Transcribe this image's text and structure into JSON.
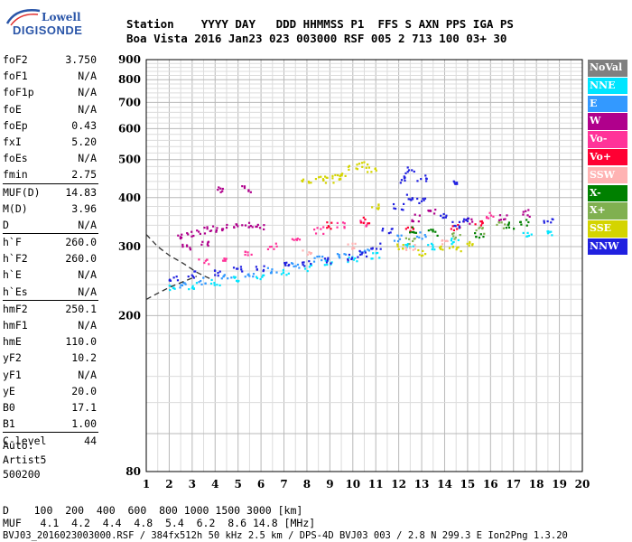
{
  "logo": {
    "line1": "Lowell",
    "line2": "DIGISONDE"
  },
  "header": {
    "line1": "Station    YYYY DAY   DDD HHMMSS P1  FFS S AXN PPS IGA PS",
    "line2": "Boa Vista 2016 Jan23 023 003000 RSF 005 2 713 100 03+ 30"
  },
  "params": [
    {
      "group": [
        {
          "name": "foF2",
          "value": "3.750"
        },
        {
          "name": "foF1",
          "value": "N/A"
        },
        {
          "name": "foF1p",
          "value": "N/A"
        },
        {
          "name": "foE",
          "value": "N/A"
        },
        {
          "name": "foEp",
          "value": "0.43"
        },
        {
          "name": "fxI",
          "value": "5.20"
        },
        {
          "name": "foEs",
          "value": "N/A"
        },
        {
          "name": "fmin",
          "value": "2.75"
        }
      ]
    },
    {
      "group": [
        {
          "name": "MUF(D)",
          "value": "14.83"
        },
        {
          "name": "M(D)",
          "value": "3.96"
        },
        {
          "name": "D",
          "value": "N/A"
        }
      ]
    },
    {
      "group": [
        {
          "name": "h`F",
          "value": "260.0"
        },
        {
          "name": "h`F2",
          "value": "260.0"
        },
        {
          "name": "h`E",
          "value": "N/A"
        },
        {
          "name": "h`Es",
          "value": "N/A"
        }
      ]
    },
    {
      "group": [
        {
          "name": "hmF2",
          "value": "250.1"
        },
        {
          "name": "hmF1",
          "value": "N/A"
        },
        {
          "name": "hmE",
          "value": "110.0"
        },
        {
          "name": "yF2",
          "value": "10.2"
        },
        {
          "name": "yF1",
          "value": "N/A"
        },
        {
          "name": "yE",
          "value": "20.0"
        },
        {
          "name": "B0",
          "value": "17.1"
        },
        {
          "name": "B1",
          "value": "1.00"
        }
      ]
    },
    {
      "group": [
        {
          "name": "C-level",
          "value": "44"
        }
      ]
    }
  ],
  "auto": {
    "line1": "Auto:",
    "line2": "Artist5",
    "line3": "500200"
  },
  "footer": {
    "line1": "D    100  200  400  600  800 1000 1500 3000 [km]",
    "line2": "MUF   4.1  4.2  4.4  4.8  5.4  6.2  8.6 14.8 [MHz]",
    "line3": "BVJ03_2016023003000.RSF / 384fx512h 50 kHz 2.5 km / DPS-4D BVJ03 003 / 2.8 N 299.3 E Ion2Png 1.3.20"
  },
  "legend": [
    {
      "label": "NoVal",
      "bg": "#808080",
      "fg": "#ffffff"
    },
    {
      "label": "NNE",
      "bg": "#00e5ff",
      "fg": "#ffffff"
    },
    {
      "label": "E",
      "bg": "#3399ff",
      "fg": "#ffffff"
    },
    {
      "label": "W",
      "bg": "#b0008c",
      "fg": "#ffffff"
    },
    {
      "label": "Vo-",
      "bg": "#ff3399",
      "fg": "#ffffff"
    },
    {
      "label": "Vo+",
      "bg": "#ff0033",
      "fg": "#ffffff"
    },
    {
      "label": "SSW",
      "bg": "#ffb3b3",
      "fg": "#ffffff"
    },
    {
      "label": "X-",
      "bg": "#008000",
      "fg": "#ffffff"
    },
    {
      "label": "X+",
      "bg": "#80b050",
      "fg": "#ffffff"
    },
    {
      "label": "SSE",
      "bg": "#d4d400",
      "fg": "#ffffff"
    },
    {
      "label": "NNW",
      "bg": "#2020e0",
      "fg": "#ffffff"
    }
  ],
  "chart_data": {
    "type": "scatter",
    "title": "",
    "xlabel": "",
    "ylabel": "",
    "xlim": [
      1,
      20
    ],
    "ylim": [
      80,
      900
    ],
    "yscale": "log",
    "x_ticks": [
      1,
      2,
      3,
      4,
      5,
      6,
      7,
      8,
      9,
      10,
      11,
      12,
      13,
      14,
      15,
      16,
      17,
      18,
      19,
      20
    ],
    "y_ticks": [
      80,
      200,
      300,
      400,
      500,
      600,
      700,
      800,
      900
    ],
    "grid": true,
    "legend_position": "right",
    "series": [
      {
        "color": "#00e5ff",
        "points": [
          [
            2.2,
            235
          ],
          [
            3,
            238
          ],
          [
            4,
            242
          ],
          [
            5,
            247
          ],
          [
            6,
            252
          ],
          [
            7,
            258
          ],
          [
            8,
            265
          ],
          [
            9,
            271
          ],
          [
            10,
            278
          ],
          [
            11,
            285
          ],
          [
            12.5,
            305
          ],
          [
            13.5,
            300
          ],
          [
            14.5,
            310
          ],
          [
            17.6,
            320
          ],
          [
            18.5,
            322
          ]
        ]
      },
      {
        "color": "#3399ff",
        "points": [
          [
            2.5,
            240
          ],
          [
            3.5,
            245
          ],
          [
            4.5,
            250
          ],
          [
            5.5,
            255
          ],
          [
            6.5,
            262
          ],
          [
            7.5,
            270
          ],
          [
            8.5,
            278
          ],
          [
            9.5,
            285
          ],
          [
            10.5,
            292
          ],
          [
            12,
            315
          ],
          [
            13,
            320
          ]
        ]
      },
      {
        "color": "#b0008c",
        "points": [
          [
            2.5,
            320
          ],
          [
            3,
            325
          ],
          [
            3.5,
            330
          ],
          [
            4,
            332
          ],
          [
            4.5,
            335
          ],
          [
            5,
            338
          ],
          [
            5.5,
            340
          ],
          [
            6,
            338
          ],
          [
            2.8,
            300
          ],
          [
            3.5,
            305
          ],
          [
            4.3,
            420
          ],
          [
            5.4,
            420
          ],
          [
            12.8,
            355
          ],
          [
            13.5,
            370
          ],
          [
            15,
            350
          ],
          [
            16.5,
            355
          ],
          [
            17.5,
            365
          ]
        ]
      },
      {
        "color": "#ff3399",
        "points": [
          [
            3.5,
            275
          ],
          [
            4.5,
            280
          ],
          [
            5.5,
            290
          ],
          [
            6.5,
            300
          ],
          [
            7.5,
            310
          ],
          [
            8.5,
            330
          ],
          [
            9.5,
            340
          ],
          [
            10.5,
            345
          ],
          [
            16,
            360
          ]
        ]
      },
      {
        "color": "#ff0033",
        "points": [
          [
            9,
            340
          ],
          [
            10.5,
            350
          ],
          [
            12.5,
            330
          ],
          [
            14.5,
            335
          ],
          [
            15.5,
            345
          ]
        ]
      },
      {
        "color": "#ffb3b3",
        "points": [
          [
            8,
            290
          ],
          [
            10,
            300
          ],
          [
            12.5,
            300
          ],
          [
            14,
            310
          ]
        ]
      },
      {
        "color": "#008000",
        "points": [
          [
            12.7,
            330
          ],
          [
            13.5,
            325
          ],
          [
            15.5,
            320
          ],
          [
            16.8,
            340
          ],
          [
            17.5,
            345
          ]
        ]
      },
      {
        "color": "#80b050",
        "points": [
          [
            12.5,
            310
          ],
          [
            14.5,
            320
          ],
          [
            15.5,
            330
          ],
          [
            16.5,
            340
          ]
        ]
      },
      {
        "color": "#d4d400",
        "points": [
          [
            8,
            445
          ],
          [
            8.5,
            445
          ],
          [
            9,
            445
          ],
          [
            9.3,
            450
          ],
          [
            9.5,
            455
          ],
          [
            10,
            480
          ],
          [
            10.5,
            485
          ],
          [
            10.8,
            470
          ],
          [
            11,
            380
          ],
          [
            12,
            300
          ],
          [
            13,
            290
          ],
          [
            14,
            300
          ],
          [
            14.5,
            295
          ],
          [
            15,
            305
          ]
        ]
      },
      {
        "color": "#2020e0",
        "points": [
          [
            2.2,
            250
          ],
          [
            3,
            255
          ],
          [
            4,
            258
          ],
          [
            5,
            262
          ],
          [
            6,
            265
          ],
          [
            7,
            268
          ],
          [
            8,
            272
          ],
          [
            9,
            276
          ],
          [
            10,
            282
          ],
          [
            10.5,
            288
          ],
          [
            11,
            300
          ],
          [
            11.5,
            330
          ],
          [
            12,
            380
          ],
          [
            12.5,
            400
          ],
          [
            13,
            395
          ],
          [
            12.3,
            445
          ],
          [
            13,
            450
          ],
          [
            12.5,
            470
          ],
          [
            14,
            360
          ],
          [
            14.5,
            340
          ],
          [
            15,
            350
          ],
          [
            18.5,
            350
          ],
          [
            14.5,
            440
          ]
        ]
      }
    ],
    "curve": {
      "style": "dashed",
      "points": [
        [
          1,
          322
        ],
        [
          1.5,
          300
        ],
        [
          2,
          285
        ],
        [
          2.6,
          272
        ],
        [
          3.2,
          258
        ],
        [
          3.8,
          248
        ]
      ]
    },
    "curve2": {
      "style": "dashed",
      "points": [
        [
          1,
          220
        ],
        [
          1.5,
          228
        ],
        [
          2,
          236
        ],
        [
          2.6,
          244
        ],
        [
          3.2,
          252
        ]
      ]
    }
  }
}
